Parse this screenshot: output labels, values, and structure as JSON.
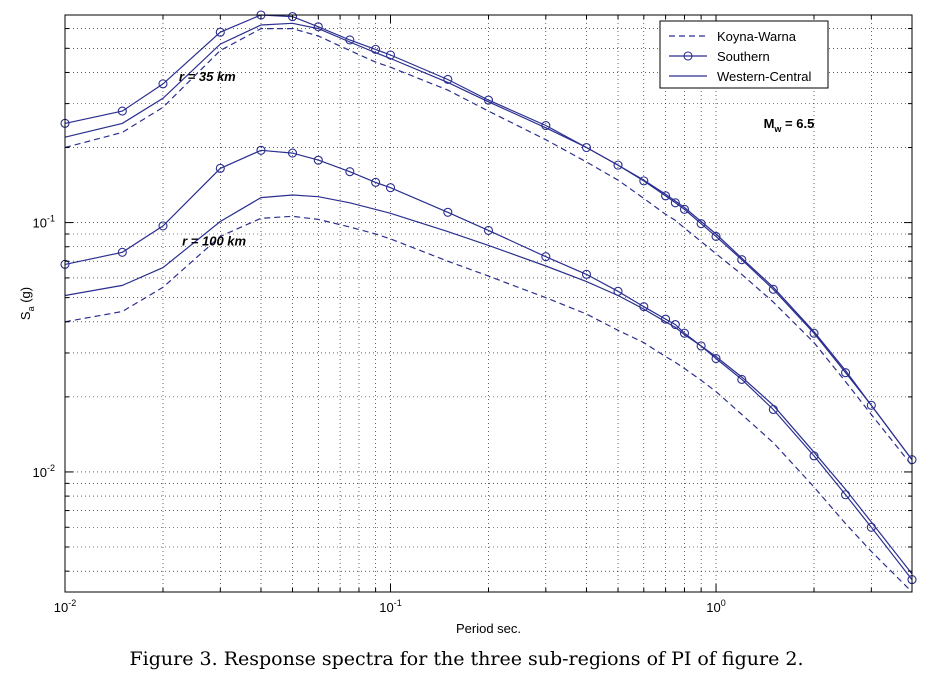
{
  "caption": "Figure 3.   Response spectra for the three sub-regions of PI of figure 2.",
  "chart_data": {
    "type": "line",
    "xscale": "log",
    "yscale": "log",
    "xlim": [
      0.01,
      4
    ],
    "ylim": [
      0.0033,
      0.68
    ],
    "grid": true,
    "xlabel": "Period sec.",
    "ylabel_main": "S",
    "ylabel_sub": "a",
    "ylabel_unit": " (g)",
    "x_ticks": [
      {
        "value": 0.01,
        "base": "10",
        "exp": "-2"
      },
      {
        "value": 0.1,
        "base": "10",
        "exp": "-1"
      },
      {
        "value": 1,
        "base": "10",
        "exp": "0"
      }
    ],
    "y_ticks": [
      {
        "value": 0.01,
        "base": "10",
        "exp": "-2"
      },
      {
        "value": 0.1,
        "base": "10",
        "exp": "-1"
      }
    ],
    "legend_position": "top-right",
    "legend": [
      "Koyna-Warna",
      "Southern",
      "Western-Central"
    ],
    "annotations": [
      {
        "text": "r = 35 km",
        "x": 0.0224,
        "y": 0.37
      },
      {
        "text": "r = 100 km",
        "x": 0.0229,
        "y": 0.081
      },
      {
        "text_main": "M",
        "text_sub": "w",
        "text_rest": " = 6.5",
        "x": 1.4,
        "y": 0.24
      }
    ],
    "series": [
      {
        "name": "Koyna-Warna",
        "group": "r = 35 km",
        "style": "dashed",
        "color": "#2b2f8f",
        "x": [
          0.01,
          0.015,
          0.02,
          0.03,
          0.04,
          0.05,
          0.06,
          0.075,
          0.09,
          0.1,
          0.15,
          0.2,
          0.3,
          0.4,
          0.5,
          0.6,
          0.7,
          0.75,
          0.8,
          0.9,
          1.0,
          1.2,
          1.5,
          2.0,
          2.5,
          3.0,
          4.0
        ],
        "y": [
          0.2,
          0.23,
          0.29,
          0.49,
          0.6,
          0.6,
          0.56,
          0.49,
          0.44,
          0.42,
          0.34,
          0.28,
          0.215,
          0.175,
          0.148,
          0.125,
          0.108,
          0.102,
          0.095,
          0.084,
          0.075,
          0.062,
          0.048,
          0.033,
          0.023,
          0.017,
          0.0106
        ]
      },
      {
        "name": "Southern",
        "group": "r = 35 km",
        "style": "solid-circle",
        "color": "#2b2f8f",
        "x": [
          0.01,
          0.015,
          0.02,
          0.03,
          0.04,
          0.05,
          0.06,
          0.075,
          0.09,
          0.1,
          0.15,
          0.2,
          0.3,
          0.4,
          0.5,
          0.6,
          0.7,
          0.75,
          0.8,
          0.9,
          1.0,
          1.2,
          1.5,
          2.0,
          2.5,
          3.0,
          4.0
        ],
        "y": [
          0.25,
          0.28,
          0.36,
          0.58,
          0.68,
          0.67,
          0.61,
          0.54,
          0.495,
          0.47,
          0.375,
          0.31,
          0.245,
          0.2,
          0.17,
          0.147,
          0.128,
          0.12,
          0.113,
          0.099,
          0.088,
          0.071,
          0.054,
          0.036,
          0.025,
          0.0185,
          0.0112
        ]
      },
      {
        "name": "Western-Central",
        "group": "r = 35 km",
        "style": "solid",
        "color": "#2b2f8f",
        "x": [
          0.01,
          0.015,
          0.02,
          0.03,
          0.04,
          0.05,
          0.06,
          0.075,
          0.09,
          0.1,
          0.15,
          0.2,
          0.3,
          0.4,
          0.5,
          0.6,
          0.7,
          0.75,
          0.8,
          0.9,
          1.0,
          1.2,
          1.5,
          2.0,
          2.5,
          3.0,
          4.0
        ],
        "y": [
          0.22,
          0.25,
          0.315,
          0.52,
          0.62,
          0.63,
          0.6,
          0.53,
          0.48,
          0.455,
          0.365,
          0.305,
          0.24,
          0.2,
          0.17,
          0.148,
          0.13,
          0.122,
          0.115,
          0.101,
          0.09,
          0.072,
          0.055,
          0.0365,
          0.0255,
          0.0185,
          0.0112
        ]
      },
      {
        "name": "Koyna-Warna",
        "group": "r = 100 km",
        "style": "dashed",
        "color": "#2b2f8f",
        "x": [
          0.01,
          0.015,
          0.02,
          0.03,
          0.04,
          0.05,
          0.06,
          0.075,
          0.09,
          0.1,
          0.15,
          0.2,
          0.3,
          0.4,
          0.5,
          0.6,
          0.7,
          0.75,
          0.8,
          0.9,
          1.0,
          1.2,
          1.5,
          2.0,
          2.5,
          3.0,
          4.0
        ],
        "y": [
          0.04,
          0.044,
          0.055,
          0.088,
          0.104,
          0.106,
          0.103,
          0.096,
          0.09,
          0.086,
          0.07,
          0.061,
          0.05,
          0.043,
          0.037,
          0.033,
          0.029,
          0.0275,
          0.026,
          0.0233,
          0.021,
          0.017,
          0.0131,
          0.0087,
          0.0062,
          0.0048,
          0.0033
        ]
      },
      {
        "name": "Southern",
        "group": "r = 100 km",
        "style": "solid-circle",
        "color": "#2b2f8f",
        "x": [
          0.01,
          0.015,
          0.02,
          0.03,
          0.04,
          0.05,
          0.06,
          0.075,
          0.09,
          0.1,
          0.15,
          0.2,
          0.3,
          0.4,
          0.5,
          0.6,
          0.7,
          0.75,
          0.8,
          0.9,
          1.0,
          1.2,
          1.5,
          2.0,
          2.5,
          3.0,
          4.0
        ],
        "y": [
          0.068,
          0.076,
          0.097,
          0.165,
          0.195,
          0.19,
          0.178,
          0.16,
          0.145,
          0.138,
          0.11,
          0.093,
          0.073,
          0.062,
          0.053,
          0.046,
          0.041,
          0.039,
          0.036,
          0.032,
          0.0285,
          0.0235,
          0.0178,
          0.0116,
          0.0081,
          0.006,
          0.0037
        ]
      },
      {
        "name": "Western-Central",
        "group": "r = 100 km",
        "style": "solid",
        "color": "#2b2f8f",
        "x": [
          0.01,
          0.015,
          0.02,
          0.03,
          0.04,
          0.05,
          0.06,
          0.075,
          0.09,
          0.1,
          0.15,
          0.2,
          0.3,
          0.4,
          0.5,
          0.6,
          0.7,
          0.75,
          0.8,
          0.9,
          1.0,
          1.2,
          1.5,
          2.0,
          2.5,
          3.0,
          4.0
        ],
        "y": [
          0.051,
          0.056,
          0.066,
          0.101,
          0.126,
          0.129,
          0.127,
          0.12,
          0.113,
          0.109,
          0.092,
          0.081,
          0.067,
          0.058,
          0.051,
          0.045,
          0.04,
          0.038,
          0.0355,
          0.032,
          0.029,
          0.024,
          0.0185,
          0.012,
          0.0085,
          0.0063,
          0.0039
        ]
      }
    ]
  }
}
